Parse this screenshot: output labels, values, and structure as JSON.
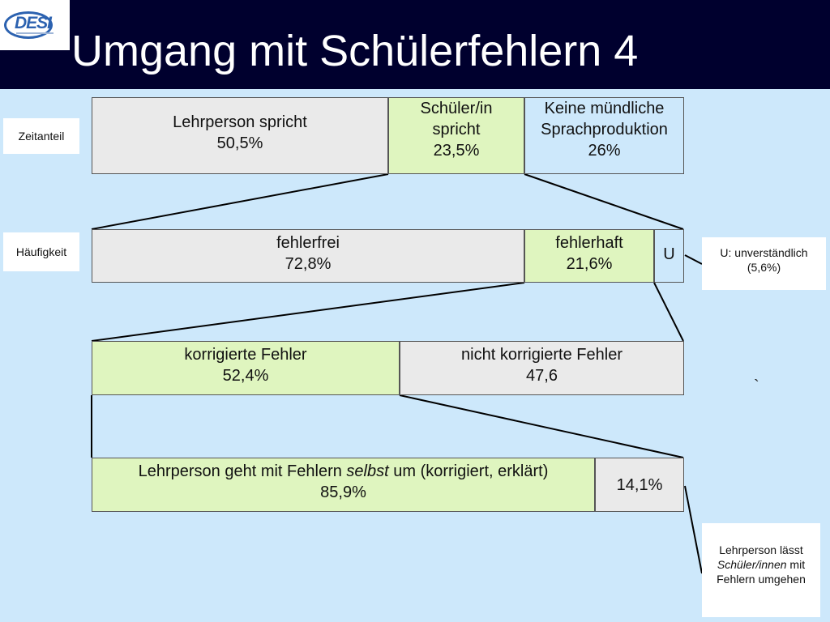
{
  "slide": {
    "logo_text": "DESI",
    "title": "Umgang mit Schülerfehlern 4"
  },
  "row_labels": {
    "zeitanteil": "Zeitanteil",
    "haeufigkeit": "Häufigkeit"
  },
  "row1": {
    "lehrperson": {
      "label": "Lehrperson spricht",
      "value": "50,5%"
    },
    "schueler": {
      "label_line1": "Schüler/in",
      "label_line2": "spricht",
      "value": "23,5%"
    },
    "keine": {
      "label_line1": "Keine mündliche",
      "label_line2": "Sprachproduktion",
      "value": "26%"
    }
  },
  "row2": {
    "fehlerfrei": {
      "label": "fehlerfrei",
      "value": "72,8%"
    },
    "fehlerhaft": {
      "label": "fehlerhaft",
      "value": "21,6%"
    },
    "u": {
      "label": "U"
    }
  },
  "row3": {
    "korrigiert": {
      "label": "korrigierte Fehler",
      "value": "52,4%"
    },
    "nicht_korrigiert": {
      "label": "nicht korrigierte Fehler",
      "value": "47,6"
    }
  },
  "row4": {
    "selbst": {
      "label_before": "Lehrperson geht mit Fehlern ",
      "label_em": "selbst",
      "label_after": " um (korrigiert, erklärt)",
      "value": "85,9%"
    },
    "rest": {
      "value": "14,1%"
    }
  },
  "notes": {
    "u_note_line1": "U: unverständlich",
    "u_note_line2": "(5,6%)",
    "stray_mark": "`",
    "lasst_line1": "Lehrperson lässt",
    "lasst_em": "Schüler/innen",
    "lasst_after": " mit",
    "lasst_line3": "Fehlern umgehen"
  }
}
